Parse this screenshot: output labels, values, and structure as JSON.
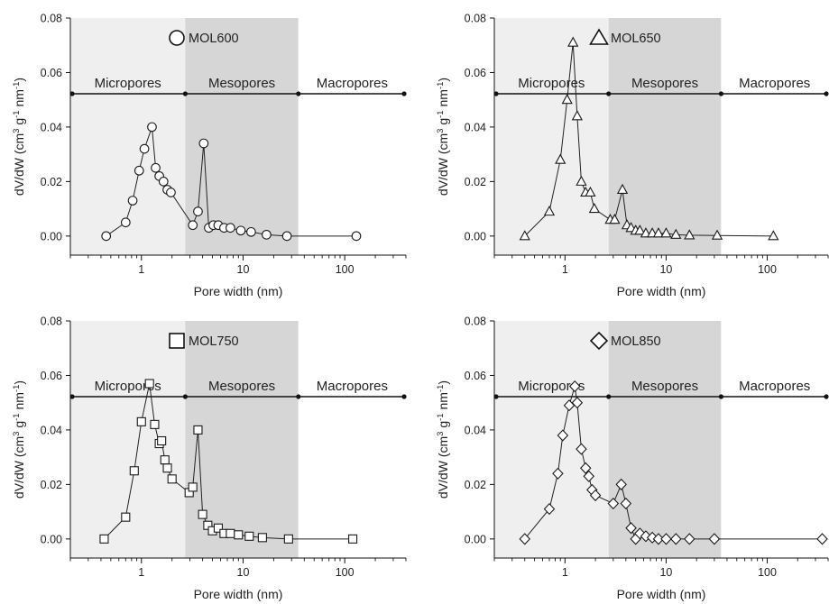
{
  "chart_data": [
    {
      "type": "scatter",
      "title": "",
      "legend_label": "MOL600",
      "marker": "circle",
      "xlabel": "Pore width (nm)",
      "ylabel": "dV/dW (cm3 g-1 nm-1)",
      "x_scale": "log",
      "xlim": [
        0.2,
        400
      ],
      "ylim": [
        -0.007,
        0.08
      ],
      "xticks": [
        "1",
        "10",
        "100"
      ],
      "yticks": [
        "0.00",
        "0.02",
        "0.04",
        "0.06",
        "0.08"
      ],
      "regions": [
        {
          "label": "Micropores",
          "from": 0.2,
          "to": 2.7,
          "shade": "#efefef"
        },
        {
          "label": "Mesopores",
          "from": 2.7,
          "to": 35,
          "shade": "#d6d6d6"
        },
        {
          "label": "Macropores",
          "from": 35,
          "to": 400,
          "shade": "#ffffff"
        }
      ],
      "series": [
        {
          "x": [
            0.45,
            0.7,
            0.82,
            0.95,
            1.07,
            1.27,
            1.38,
            1.5,
            1.65,
            1.8,
            1.95,
            3.2,
            3.6,
            4.1,
            4.6,
            5.1,
            5.7,
            6.5,
            7.5,
            9.5,
            12,
            17,
            27,
            130
          ],
          "y": [
            0.0,
            0.005,
            0.013,
            0.024,
            0.032,
            0.04,
            0.025,
            0.022,
            0.02,
            0.017,
            0.016,
            0.004,
            0.009,
            0.034,
            0.003,
            0.004,
            0.004,
            0.003,
            0.003,
            0.002,
            0.0015,
            0.0005,
            0.0,
            0.0
          ]
        }
      ]
    },
    {
      "type": "scatter",
      "title": "",
      "legend_label": "MOL650",
      "marker": "triangle",
      "xlabel": "Pore width (nm)",
      "ylabel": "dV/dW (cm3 g-1 nm-1)",
      "x_scale": "log",
      "xlim": [
        0.2,
        400
      ],
      "ylim": [
        -0.007,
        0.08
      ],
      "xticks": [
        "1",
        "10",
        "100"
      ],
      "yticks": [
        "0.00",
        "0.02",
        "0.04",
        "0.06",
        "0.08"
      ],
      "regions": [
        {
          "label": "Micropores",
          "from": 0.2,
          "to": 2.7,
          "shade": "#efefef"
        },
        {
          "label": "Mesopores",
          "from": 2.7,
          "to": 35,
          "shade": "#d6d6d6"
        },
        {
          "label": "Macropores",
          "from": 35,
          "to": 400,
          "shade": "#ffffff"
        }
      ],
      "series": [
        {
          "x": [
            0.4,
            0.7,
            0.9,
            1.05,
            1.2,
            1.32,
            1.45,
            1.6,
            1.78,
            1.95,
            2.8,
            3.1,
            3.7,
            4.1,
            4.5,
            5,
            5.5,
            6.3,
            7.3,
            8.4,
            10,
            12.5,
            17,
            32,
            115
          ],
          "y": [
            0.0,
            0.009,
            0.028,
            0.05,
            0.071,
            0.044,
            0.02,
            0.016,
            0.016,
            0.01,
            0.006,
            0.006,
            0.017,
            0.004,
            0.003,
            0.002,
            0.002,
            0.001,
            0.001,
            0.001,
            0.001,
            0.0005,
            0.0003,
            0.0002,
            0.0
          ]
        }
      ]
    },
    {
      "type": "scatter",
      "title": "",
      "legend_label": "MOL750",
      "marker": "square",
      "xlabel": "Pore width (nm)",
      "ylabel": "dV/dW (cm3 g-1 nm-1)",
      "x_scale": "log",
      "xlim": [
        0.2,
        400
      ],
      "ylim": [
        -0.007,
        0.08
      ],
      "xticks": [
        "1",
        "10",
        "100"
      ],
      "yticks": [
        "0.00",
        "0.02",
        "0.04",
        "0.06",
        "0.08"
      ],
      "regions": [
        {
          "label": "Micropores",
          "from": 0.2,
          "to": 2.7,
          "shade": "#efefef"
        },
        {
          "label": "Mesopores",
          "from": 2.7,
          "to": 35,
          "shade": "#d6d6d6"
        },
        {
          "label": "Macropores",
          "from": 35,
          "to": 400,
          "shade": "#ffffff"
        }
      ],
      "series": [
        {
          "x": [
            0.43,
            0.7,
            0.85,
            1.0,
            1.2,
            1.35,
            1.5,
            1.58,
            1.7,
            1.8,
            2.0,
            2.95,
            3.2,
            3.6,
            4.0,
            4.5,
            5.0,
            5.7,
            6.5,
            7.5,
            9,
            11.5,
            15.5,
            28,
            120
          ],
          "y": [
            0.0,
            0.008,
            0.025,
            0.043,
            0.057,
            0.042,
            0.035,
            0.036,
            0.029,
            0.026,
            0.022,
            0.017,
            0.019,
            0.04,
            0.009,
            0.005,
            0.003,
            0.004,
            0.002,
            0.002,
            0.0015,
            0.001,
            0.0005,
            0.0,
            0.0
          ]
        }
      ]
    },
    {
      "type": "scatter",
      "title": "",
      "legend_label": "MOL850",
      "marker": "diamond",
      "xlabel": "Pore width (nm)",
      "ylabel": "dV/dW (cm3 g-1 nm-1)",
      "x_scale": "log",
      "xlim": [
        0.2,
        400
      ],
      "ylim": [
        -0.007,
        0.08
      ],
      "xticks": [
        "1",
        "10",
        "100"
      ],
      "yticks": [
        "0.00",
        "0.02",
        "0.04",
        "0.06",
        "0.08"
      ],
      "regions": [
        {
          "label": "Micropores",
          "from": 0.2,
          "to": 2.7,
          "shade": "#efefef"
        },
        {
          "label": "Mesopores",
          "from": 2.7,
          "to": 35,
          "shade": "#d6d6d6"
        },
        {
          "label": "Macropores",
          "from": 35,
          "to": 400,
          "shade": "#ffffff"
        }
      ],
      "series": [
        {
          "x": [
            0.4,
            0.7,
            0.85,
            0.95,
            1.1,
            1.25,
            1.32,
            1.45,
            1.6,
            1.72,
            1.85,
            2.0,
            3.0,
            3.6,
            4.0,
            4.5,
            5.0,
            5.5,
            6.3,
            7.3,
            8.4,
            10,
            12.5,
            17,
            30,
            350
          ],
          "y": [
            0.0,
            0.011,
            0.024,
            0.038,
            0.049,
            0.056,
            0.05,
            0.033,
            0.026,
            0.023,
            0.018,
            0.016,
            0.013,
            0.02,
            0.013,
            0.004,
            0.0,
            0.002,
            0.001,
            0.0005,
            0.0,
            0.0,
            0.0,
            0.0,
            0.0,
            0.0
          ]
        }
      ]
    }
  ]
}
